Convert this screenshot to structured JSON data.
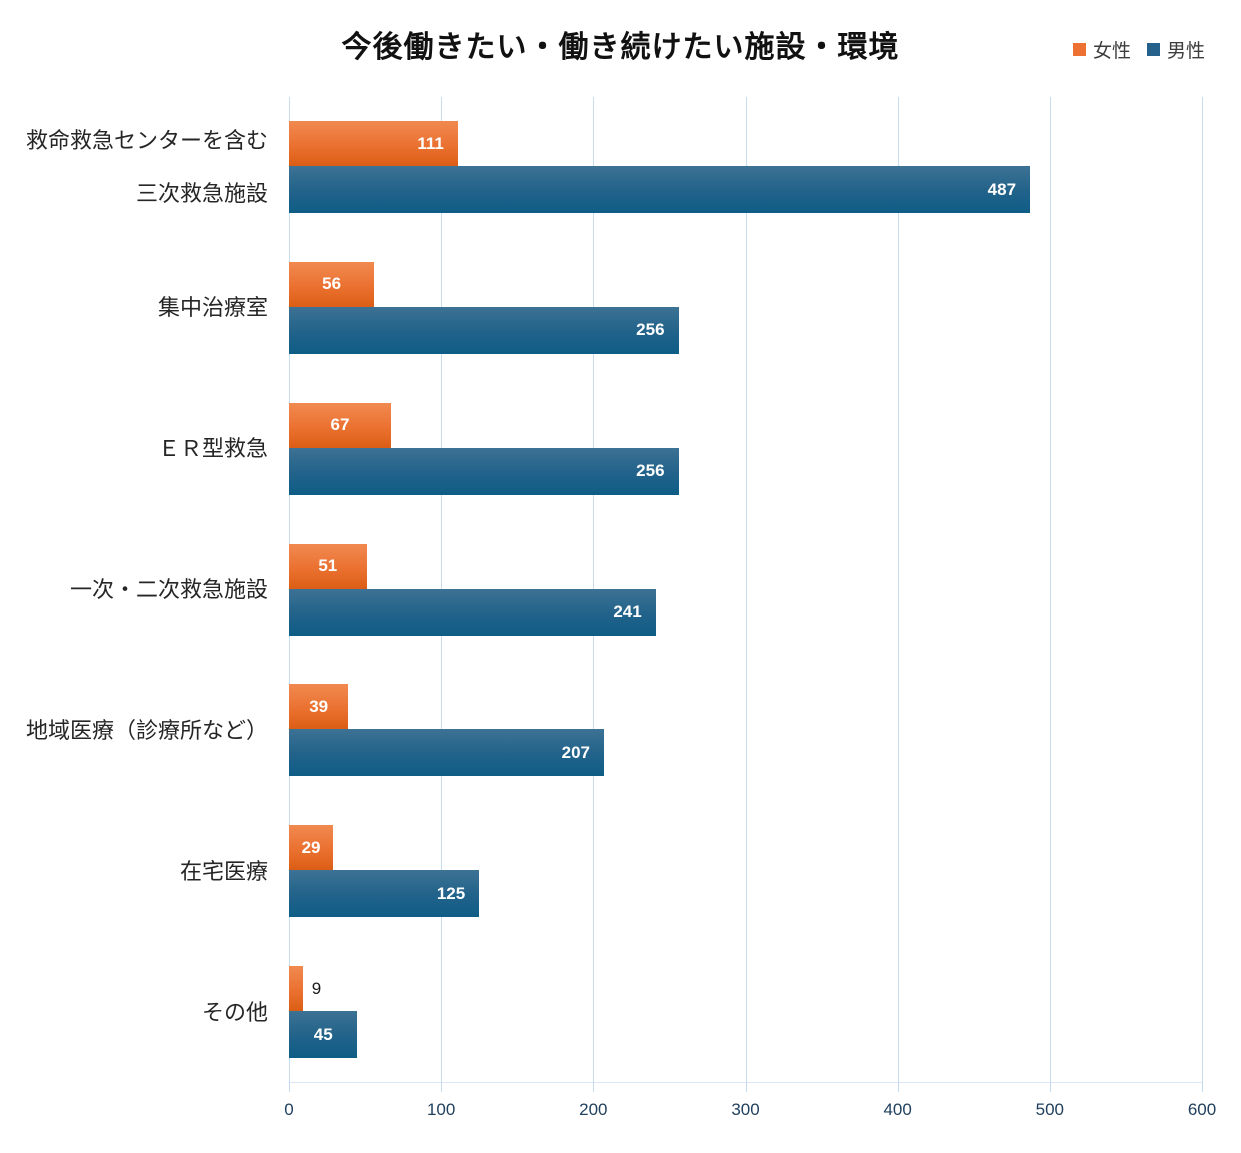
{
  "title": "今後働きたい・働き続けたい施設・環境",
  "legend": [
    {
      "key": "female",
      "label": "女性",
      "color": "#ec7132"
    },
    {
      "key": "male",
      "label": "男性",
      "color": "#25618a"
    }
  ],
  "colors": {
    "female_gradient_top": "#f18a50",
    "female_gradient_bottom": "#dc5e15",
    "male_gradient_top": "#3d7294",
    "male_gradient_bottom": "#0e5d86",
    "gridline": "#c9ddf1",
    "tick_label": "#21405e",
    "value_label_inside": "#ffffff",
    "value_label_outside": "#1a1a1a",
    "category_label": "#262626",
    "title": "#111111"
  },
  "chart_data": {
    "type": "bar",
    "orientation": "horizontal",
    "title": "今後働きたい・働き続けたい施設・環境",
    "categories": [
      [
        "救命救急センターを含む",
        "三次救急施設"
      ],
      [
        "集中治療室"
      ],
      [
        "ＥＲ型救急"
      ],
      [
        "一次・二次救急施設"
      ],
      [
        "地域医療（診療所など）"
      ],
      [
        "在宅医療"
      ],
      [
        "その他"
      ]
    ],
    "series": [
      {
        "name": "女性",
        "values": [
          111,
          56,
          67,
          51,
          39,
          29,
          9
        ]
      },
      {
        "name": "男性",
        "values": [
          487,
          256,
          256,
          241,
          207,
          125,
          45
        ]
      }
    ],
    "xlim": [
      0,
      600
    ],
    "x_ticks": [
      0,
      100,
      200,
      300,
      400,
      500,
      600
    ],
    "grid": true,
    "legend_position": "top-right",
    "value_labels": true
  }
}
